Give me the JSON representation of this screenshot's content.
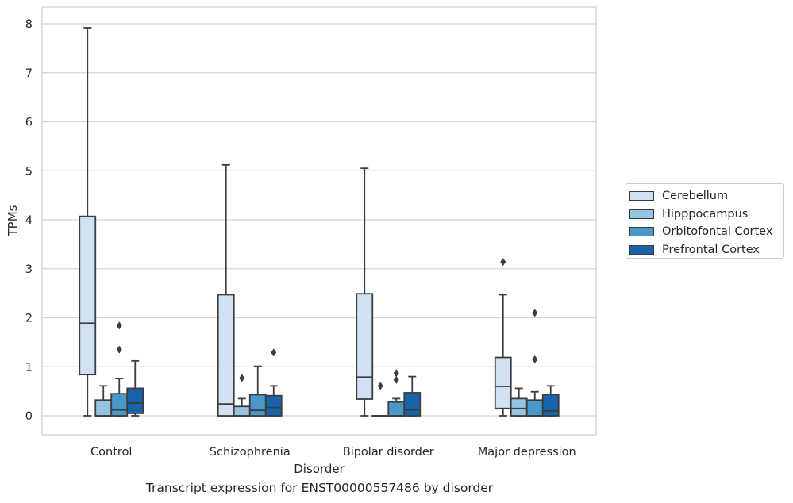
{
  "chart_data": {
    "type": "box",
    "title": "",
    "caption": "Transcript expression for ENST00000557486 by disorder",
    "xlabel": "Disorder",
    "ylabel": "TPMs",
    "ylim": [
      -0.4,
      8.35
    ],
    "yticks": [
      0,
      1,
      2,
      3,
      4,
      5,
      6,
      7,
      8
    ],
    "grid": true,
    "legend_position": "right",
    "categories": [
      "Control",
      "Schizophrenia",
      "Bipolar disorder",
      "Major depression"
    ],
    "series": [
      {
        "name": "Cerebellum",
        "color": "#d0e1f2",
        "boxes": [
          {
            "whisker_low": 0.0,
            "q1": 0.84,
            "median": 1.89,
            "q3": 4.07,
            "whisker_high": 7.92,
            "outliers": []
          },
          {
            "whisker_low": 0.0,
            "q1": 0.0,
            "median": 0.24,
            "q3": 2.47,
            "whisker_high": 5.12,
            "outliers": []
          },
          {
            "whisker_low": 0.0,
            "q1": 0.34,
            "median": 0.79,
            "q3": 2.49,
            "whisker_high": 5.05,
            "outliers": []
          },
          {
            "whisker_low": 0.0,
            "q1": 0.15,
            "median": 0.6,
            "q3": 1.19,
            "whisker_high": 2.47,
            "outliers": [
              3.14
            ]
          }
        ]
      },
      {
        "name": "Hipppocampus",
        "color": "#94c4df",
        "boxes": [
          {
            "whisker_low": 0.0,
            "q1": 0.0,
            "median": 0.0,
            "q3": 0.32,
            "whisker_high": 0.61,
            "outliers": []
          },
          {
            "whisker_low": 0.0,
            "q1": 0.0,
            "median": 0.0,
            "q3": 0.19,
            "whisker_high": 0.35,
            "outliers": [
              0.77
            ]
          },
          {
            "whisker_low": 0.0,
            "q1": 0.0,
            "median": 0.0,
            "q3": 0.0,
            "whisker_high": 0.0,
            "outliers": [
              0.61
            ]
          },
          {
            "whisker_low": 0.0,
            "q1": 0.0,
            "median": 0.15,
            "q3": 0.35,
            "whisker_high": 0.56,
            "outliers": []
          }
        ]
      },
      {
        "name": "Orbitofontal Cortex",
        "color": "#4a98c9",
        "boxes": [
          {
            "whisker_low": 0.0,
            "q1": 0.0,
            "median": 0.12,
            "q3": 0.45,
            "whisker_high": 0.76,
            "outliers": [
              1.35,
              1.84
            ]
          },
          {
            "whisker_low": 0.0,
            "q1": 0.0,
            "median": 0.11,
            "q3": 0.43,
            "whisker_high": 1.01,
            "outliers": []
          },
          {
            "whisker_low": 0.0,
            "q1": 0.0,
            "median": 0.0,
            "q3": 0.28,
            "whisker_high": 0.35,
            "outliers": [
              0.73,
              0.87
            ]
          },
          {
            "whisker_low": 0.0,
            "q1": 0.0,
            "median": 0.0,
            "q3": 0.32,
            "whisker_high": 0.49,
            "outliers": [
              1.15,
              2.1
            ]
          }
        ]
      },
      {
        "name": "Prefrontal Cortex",
        "color": "#1764ab",
        "boxes": [
          {
            "whisker_low": 0.0,
            "q1": 0.05,
            "median": 0.26,
            "q3": 0.56,
            "whisker_high": 1.12,
            "outliers": []
          },
          {
            "whisker_low": 0.0,
            "q1": 0.0,
            "median": 0.17,
            "q3": 0.41,
            "whisker_high": 0.61,
            "outliers": [
              1.29
            ]
          },
          {
            "whisker_low": 0.0,
            "q1": 0.0,
            "median": 0.12,
            "q3": 0.47,
            "whisker_high": 0.8,
            "outliers": []
          },
          {
            "whisker_low": 0.0,
            "q1": 0.0,
            "median": 0.1,
            "q3": 0.43,
            "whisker_high": 0.61,
            "outliers": []
          }
        ]
      }
    ]
  }
}
